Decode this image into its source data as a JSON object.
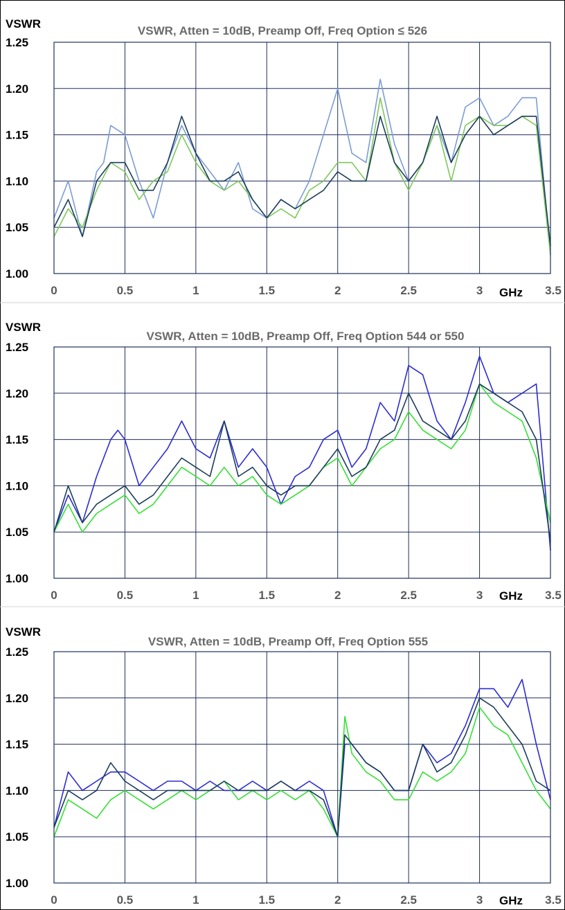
{
  "colors": {
    "grid": "#1f2f5a",
    "plot_border": "#1f2f5a",
    "ytick": "#000000",
    "xtick": "#595959"
  },
  "chart_data": [
    {
      "type": "line",
      "title": "VSWR, Atten = 10dB, Preamp Off, Freq Option ≤ 526",
      "ylabel": "VSWR",
      "x_unit_label": "GHz",
      "xlim": [
        0,
        3.5
      ],
      "ylim": [
        1.0,
        1.25
      ],
      "x_ticks": [
        0,
        0.5,
        1,
        1.5,
        2,
        2.5,
        3,
        3.5
      ],
      "x_tick_labels": [
        "0",
        "0.5",
        "1",
        "1.5",
        "2",
        "2.5",
        "3",
        "3.5"
      ],
      "y_ticks": [
        1.0,
        1.05,
        1.1,
        1.15,
        1.2,
        1.25
      ],
      "y_tick_labels": [
        "1.00",
        "1.05",
        "1.10",
        "1.15",
        "1.20",
        "1.25"
      ],
      "grid": true,
      "legend": "none",
      "series": [
        {
          "color": "#7b9cd6",
          "x": [
            0,
            0.1,
            0.2,
            0.3,
            0.35,
            0.4,
            0.5,
            0.6,
            0.7,
            0.8,
            0.9,
            1.0,
            1.1,
            1.2,
            1.3,
            1.4,
            1.5,
            1.6,
            1.7,
            1.8,
            1.9,
            2.0,
            2.1,
            2.2,
            2.3,
            2.4,
            2.5,
            2.6,
            2.7,
            2.8,
            2.9,
            3.0,
            3.1,
            3.2,
            3.3,
            3.4,
            3.5
          ],
          "y": [
            1.06,
            1.1,
            1.04,
            1.11,
            1.12,
            1.16,
            1.15,
            1.1,
            1.06,
            1.12,
            1.16,
            1.13,
            1.11,
            1.09,
            1.12,
            1.07,
            1.06,
            1.08,
            1.07,
            1.1,
            1.15,
            1.2,
            1.13,
            1.12,
            1.21,
            1.14,
            1.1,
            1.12,
            1.16,
            1.12,
            1.18,
            1.19,
            1.16,
            1.17,
            1.19,
            1.19,
            1.02
          ]
        },
        {
          "color": "#7ec85a",
          "x": [
            0,
            0.1,
            0.2,
            0.3,
            0.4,
            0.5,
            0.6,
            0.7,
            0.8,
            0.9,
            1.0,
            1.1,
            1.2,
            1.3,
            1.4,
            1.5,
            1.6,
            1.7,
            1.8,
            1.9,
            2.0,
            2.1,
            2.2,
            2.3,
            2.4,
            2.5,
            2.6,
            2.7,
            2.8,
            2.9,
            3.0,
            3.1,
            3.2,
            3.3,
            3.4,
            3.5
          ],
          "y": [
            1.04,
            1.07,
            1.05,
            1.09,
            1.12,
            1.11,
            1.08,
            1.1,
            1.11,
            1.15,
            1.12,
            1.1,
            1.09,
            1.1,
            1.08,
            1.06,
            1.07,
            1.06,
            1.09,
            1.1,
            1.12,
            1.12,
            1.1,
            1.19,
            1.12,
            1.09,
            1.12,
            1.16,
            1.1,
            1.16,
            1.17,
            1.16,
            1.16,
            1.17,
            1.16,
            1.02
          ]
        },
        {
          "color": "#1c3d5c",
          "x": [
            0,
            0.1,
            0.2,
            0.3,
            0.4,
            0.5,
            0.6,
            0.7,
            0.8,
            0.9,
            1.0,
            1.1,
            1.2,
            1.3,
            1.4,
            1.5,
            1.6,
            1.7,
            1.8,
            1.9,
            2.0,
            2.1,
            2.2,
            2.3,
            2.4,
            2.5,
            2.6,
            2.7,
            2.8,
            2.9,
            3.0,
            3.1,
            3.2,
            3.3,
            3.4,
            3.5
          ],
          "y": [
            1.05,
            1.08,
            1.04,
            1.1,
            1.12,
            1.12,
            1.09,
            1.09,
            1.12,
            1.17,
            1.13,
            1.1,
            1.1,
            1.11,
            1.08,
            1.06,
            1.08,
            1.07,
            1.08,
            1.09,
            1.11,
            1.1,
            1.1,
            1.17,
            1.12,
            1.1,
            1.12,
            1.17,
            1.12,
            1.15,
            1.17,
            1.15,
            1.16,
            1.17,
            1.17,
            1.03
          ]
        }
      ]
    },
    {
      "type": "line",
      "title": "VSWR, Atten = 10dB, Preamp Off, Freq Option 544 or 550",
      "ylabel": "VSWR",
      "x_unit_label": "GHz",
      "xlim": [
        0,
        3.5
      ],
      "ylim": [
        1.0,
        1.25
      ],
      "x_ticks": [
        0,
        0.5,
        1,
        1.5,
        2,
        2.5,
        3,
        3.5
      ],
      "x_tick_labels": [
        "0",
        "0.5",
        "1",
        "1.5",
        "2",
        "2.5",
        "3",
        "3.5"
      ],
      "y_ticks": [
        1.0,
        1.05,
        1.1,
        1.15,
        1.2,
        1.25
      ],
      "y_tick_labels": [
        "1.00",
        "1.05",
        "1.10",
        "1.15",
        "1.20",
        "1.25"
      ],
      "grid": true,
      "legend": "none",
      "series": [
        {
          "color": "#2b2bd4",
          "x": [
            0,
            0.1,
            0.2,
            0.3,
            0.4,
            0.45,
            0.5,
            0.6,
            0.7,
            0.8,
            0.9,
            1.0,
            1.1,
            1.2,
            1.3,
            1.4,
            1.5,
            1.6,
            1.7,
            1.8,
            1.9,
            2.0,
            2.1,
            2.2,
            2.3,
            2.4,
            2.5,
            2.6,
            2.7,
            2.8,
            2.9,
            3.0,
            3.1,
            3.2,
            3.3,
            3.4,
            3.5
          ],
          "y": [
            1.05,
            1.09,
            1.06,
            1.11,
            1.15,
            1.16,
            1.15,
            1.1,
            1.12,
            1.14,
            1.17,
            1.14,
            1.13,
            1.17,
            1.12,
            1.14,
            1.12,
            1.08,
            1.11,
            1.12,
            1.15,
            1.16,
            1.12,
            1.14,
            1.19,
            1.17,
            1.23,
            1.22,
            1.17,
            1.15,
            1.19,
            1.24,
            1.2,
            1.19,
            1.2,
            1.21,
            1.03
          ]
        },
        {
          "color": "#33e033",
          "x": [
            0,
            0.1,
            0.2,
            0.3,
            0.4,
            0.5,
            0.6,
            0.7,
            0.8,
            0.9,
            1.0,
            1.1,
            1.2,
            1.3,
            1.4,
            1.5,
            1.6,
            1.7,
            1.8,
            1.9,
            2.0,
            2.1,
            2.2,
            2.3,
            2.4,
            2.5,
            2.6,
            2.7,
            2.8,
            2.9,
            3.0,
            3.1,
            3.2,
            3.3,
            3.4,
            3.5
          ],
          "y": [
            1.05,
            1.08,
            1.05,
            1.07,
            1.08,
            1.09,
            1.07,
            1.08,
            1.1,
            1.12,
            1.11,
            1.1,
            1.12,
            1.1,
            1.11,
            1.09,
            1.08,
            1.09,
            1.1,
            1.12,
            1.13,
            1.1,
            1.12,
            1.14,
            1.15,
            1.18,
            1.16,
            1.15,
            1.14,
            1.16,
            1.21,
            1.19,
            1.18,
            1.17,
            1.13,
            1.06
          ]
        },
        {
          "color": "#1c3d5c",
          "x": [
            0,
            0.1,
            0.2,
            0.3,
            0.4,
            0.5,
            0.6,
            0.7,
            0.8,
            0.9,
            1.0,
            1.1,
            1.2,
            1.3,
            1.4,
            1.5,
            1.6,
            1.7,
            1.8,
            1.9,
            2.0,
            2.1,
            2.2,
            2.3,
            2.4,
            2.5,
            2.6,
            2.7,
            2.8,
            2.9,
            3.0,
            3.1,
            3.2,
            3.3,
            3.4,
            3.5
          ],
          "y": [
            1.05,
            1.1,
            1.06,
            1.08,
            1.09,
            1.1,
            1.08,
            1.09,
            1.11,
            1.13,
            1.12,
            1.11,
            1.17,
            1.11,
            1.12,
            1.1,
            1.09,
            1.1,
            1.1,
            1.12,
            1.14,
            1.11,
            1.12,
            1.15,
            1.16,
            1.2,
            1.17,
            1.16,
            1.15,
            1.17,
            1.21,
            1.2,
            1.19,
            1.18,
            1.15,
            1.04
          ]
        }
      ]
    },
    {
      "type": "line",
      "title": "VSWR, Atten = 10dB, Preamp Off, Freq Option 555",
      "ylabel": "VSWR",
      "x_unit_label": "GHz",
      "xlim": [
        0,
        3.5
      ],
      "ylim": [
        1.0,
        1.25
      ],
      "x_ticks": [
        0,
        0.5,
        1,
        1.5,
        2,
        2.5,
        3,
        3.5
      ],
      "x_tick_labels": [
        "0",
        "0.5",
        "1",
        "1.5",
        "2",
        "2.5",
        "3",
        "3.5"
      ],
      "y_ticks": [
        1.0,
        1.05,
        1.1,
        1.15,
        1.2,
        1.25
      ],
      "y_tick_labels": [
        "1.00",
        "1.05",
        "1.10",
        "1.15",
        "1.20",
        "1.25"
      ],
      "grid": true,
      "legend": "none",
      "series": [
        {
          "color": "#2b2bd4",
          "x": [
            0,
            0.1,
            0.2,
            0.3,
            0.4,
            0.5,
            0.6,
            0.7,
            0.8,
            0.9,
            1.0,
            1.1,
            1.2,
            1.3,
            1.4,
            1.5,
            1.6,
            1.7,
            1.8,
            1.9,
            2.0,
            2.05,
            2.1,
            2.2,
            2.3,
            2.4,
            2.5,
            2.6,
            2.7,
            2.8,
            2.9,
            3.0,
            3.1,
            3.2,
            3.3,
            3.4,
            3.5
          ],
          "y": [
            1.06,
            1.12,
            1.1,
            1.11,
            1.12,
            1.12,
            1.11,
            1.1,
            1.11,
            1.11,
            1.1,
            1.11,
            1.1,
            1.1,
            1.11,
            1.1,
            1.11,
            1.1,
            1.11,
            1.1,
            1.05,
            1.15,
            1.15,
            1.13,
            1.12,
            1.1,
            1.1,
            1.15,
            1.13,
            1.14,
            1.17,
            1.21,
            1.21,
            1.19,
            1.22,
            1.15,
            1.09
          ]
        },
        {
          "color": "#33e033",
          "x": [
            0,
            0.1,
            0.2,
            0.3,
            0.4,
            0.5,
            0.6,
            0.7,
            0.8,
            0.9,
            1.0,
            1.1,
            1.2,
            1.3,
            1.4,
            1.5,
            1.6,
            1.7,
            1.8,
            1.9,
            2.0,
            2.05,
            2.1,
            2.2,
            2.3,
            2.4,
            2.5,
            2.6,
            2.7,
            2.8,
            2.9,
            3.0,
            3.1,
            3.2,
            3.3,
            3.4,
            3.5
          ],
          "y": [
            1.05,
            1.09,
            1.08,
            1.07,
            1.09,
            1.1,
            1.09,
            1.08,
            1.09,
            1.1,
            1.09,
            1.1,
            1.11,
            1.09,
            1.1,
            1.09,
            1.1,
            1.09,
            1.1,
            1.08,
            1.05,
            1.18,
            1.14,
            1.12,
            1.11,
            1.09,
            1.09,
            1.12,
            1.11,
            1.12,
            1.14,
            1.19,
            1.17,
            1.16,
            1.13,
            1.1,
            1.08
          ]
        },
        {
          "color": "#1c3d5c",
          "x": [
            0,
            0.1,
            0.2,
            0.3,
            0.4,
            0.5,
            0.6,
            0.7,
            0.8,
            0.9,
            1.0,
            1.1,
            1.2,
            1.3,
            1.4,
            1.5,
            1.6,
            1.7,
            1.8,
            1.9,
            2.0,
            2.05,
            2.1,
            2.2,
            2.3,
            2.4,
            2.5,
            2.6,
            2.7,
            2.8,
            2.9,
            3.0,
            3.1,
            3.2,
            3.3,
            3.4,
            3.5
          ],
          "y": [
            1.06,
            1.1,
            1.09,
            1.1,
            1.13,
            1.11,
            1.1,
            1.09,
            1.1,
            1.1,
            1.1,
            1.1,
            1.11,
            1.1,
            1.1,
            1.1,
            1.11,
            1.1,
            1.1,
            1.09,
            1.05,
            1.16,
            1.15,
            1.13,
            1.12,
            1.1,
            1.1,
            1.15,
            1.12,
            1.13,
            1.16,
            1.2,
            1.19,
            1.17,
            1.15,
            1.11,
            1.1
          ]
        }
      ]
    }
  ]
}
